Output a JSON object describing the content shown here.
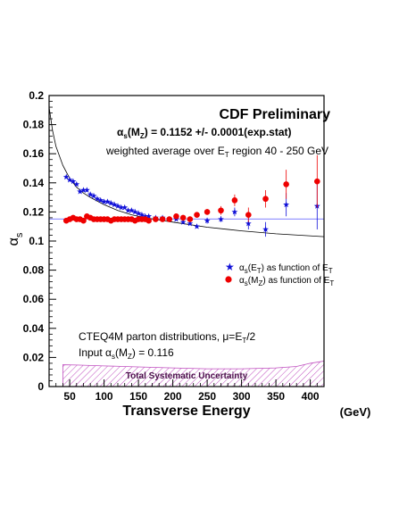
{
  "chart_data": {
    "type": "scatter",
    "title": "CDF Preliminary",
    "result_line": "= 0.1152 +/- 0.0001(exp.stat)",
    "xlabel": "Transverse Energy",
    "xunit": "(GeV)",
    "ylabel": "α",
    "ylabel_sub": "s",
    "xlim": [
      20,
      420
    ],
    "ylim": [
      0,
      0.2
    ],
    "x_ticks": [
      50,
      100,
      150,
      200,
      250,
      300,
      350,
      400
    ],
    "y_ticks": [
      0,
      0.02,
      0.04,
      0.06,
      0.08,
      0.1,
      0.12,
      0.14,
      0.16,
      0.18,
      0.2
    ],
    "y_tick_labels": [
      "0",
      "0.02",
      "0.04",
      "0.06",
      "0.08",
      "0.1",
      "0.12",
      "0.14",
      "0.16",
      "0.18",
      "0.2"
    ],
    "grid": false,
    "average_line": 0.1152,
    "annotations": {
      "weighted_average": "weighted average over E",
      "weighted_average_tail": " region 40 - 250 GeV",
      "legend_et": "as function of E",
      "legend_mz": "as function of E",
      "cteq": "CTEQ4M parton distributions, μ=E",
      "cteq_tail": "/2",
      "input": "Input α",
      "input_tail": " = 0.116",
      "systematic": "Total Systematic Uncertainty"
    },
    "series": [
      {
        "name": "αs(ET) as function of ET",
        "marker": "star",
        "color": "#1010d8",
        "x": [
          45,
          50,
          55,
          60,
          65,
          70,
          75,
          80,
          85,
          90,
          95,
          100,
          105,
          110,
          115,
          120,
          125,
          130,
          135,
          140,
          145,
          150,
          155,
          160,
          165,
          175,
          185,
          195,
          205,
          215,
          225,
          235,
          250,
          270,
          290,
          310,
          335,
          365,
          410
        ],
        "y": [
          0.144,
          0.142,
          0.141,
          0.139,
          0.134,
          0.135,
          0.135,
          0.132,
          0.131,
          0.129,
          0.128,
          0.127,
          0.127,
          0.126,
          0.125,
          0.124,
          0.123,
          0.123,
          0.121,
          0.121,
          0.12,
          0.119,
          0.118,
          0.117,
          0.117,
          0.116,
          0.116,
          0.115,
          0.115,
          0.113,
          0.112,
          0.11,
          0.114,
          0.115,
          0.12,
          0.112,
          0.108,
          0.125,
          0.124
        ],
        "err": [
          0,
          0,
          0,
          0,
          0,
          0,
          0,
          0,
          0,
          0,
          0,
          0,
          0,
          0,
          0,
          0,
          0,
          0,
          0,
          0,
          0,
          0,
          0,
          0,
          0,
          0,
          0,
          0,
          0,
          0,
          0,
          0,
          0.002,
          0.002,
          0.003,
          0.004,
          0.005,
          0.008,
          0.016
        ]
      },
      {
        "name": "αs(MZ) as function of ET",
        "marker": "circle",
        "color": "#ee0000",
        "x": [
          45,
          50,
          55,
          60,
          65,
          70,
          75,
          80,
          85,
          90,
          95,
          100,
          105,
          110,
          115,
          120,
          125,
          130,
          135,
          140,
          145,
          150,
          155,
          160,
          165,
          175,
          185,
          195,
          205,
          215,
          225,
          235,
          250,
          270,
          290,
          310,
          335,
          365,
          410
        ],
        "y": [
          0.114,
          0.115,
          0.116,
          0.115,
          0.115,
          0.114,
          0.117,
          0.116,
          0.115,
          0.115,
          0.115,
          0.115,
          0.115,
          0.114,
          0.115,
          0.115,
          0.115,
          0.115,
          0.115,
          0.115,
          0.114,
          0.115,
          0.115,
          0.115,
          0.114,
          0.115,
          0.115,
          0.115,
          0.117,
          0.116,
          0.115,
          0.118,
          0.12,
          0.121,
          0.128,
          0.118,
          0.129,
          0.139,
          0.141
        ],
        "err": [
          0,
          0,
          0,
          0,
          0,
          0,
          0,
          0,
          0,
          0,
          0,
          0,
          0,
          0,
          0,
          0,
          0,
          0,
          0,
          0,
          0,
          0,
          0,
          0,
          0,
          0,
          0,
          0,
          0,
          0,
          0,
          0,
          0.002,
          0.003,
          0.004,
          0.005,
          0.006,
          0.01,
          0.018
        ]
      }
    ],
    "curve": {
      "x": [
        20,
        25,
        30,
        40,
        50,
        60,
        70,
        80,
        100,
        120,
        140,
        160,
        180,
        200,
        250,
        300,
        350,
        420
      ],
      "y": [
        0.192,
        0.176,
        0.165,
        0.152,
        0.143,
        0.137,
        0.133,
        0.13,
        0.125,
        0.121,
        0.118,
        0.116,
        0.1145,
        0.113,
        0.1095,
        0.107,
        0.105,
        0.103
      ]
    },
    "band": {
      "x": [
        40,
        60,
        100,
        150,
        200,
        250,
        300,
        350,
        380,
        400,
        420
      ],
      "upper": [
        0.015,
        0.0148,
        0.0142,
        0.0135,
        0.0128,
        0.0122,
        0.0122,
        0.0128,
        0.0138,
        0.016,
        0.0175
      ]
    },
    "colors": {
      "band": "#c050c0",
      "average_line": "#5555ff",
      "curve": "#000000"
    }
  }
}
